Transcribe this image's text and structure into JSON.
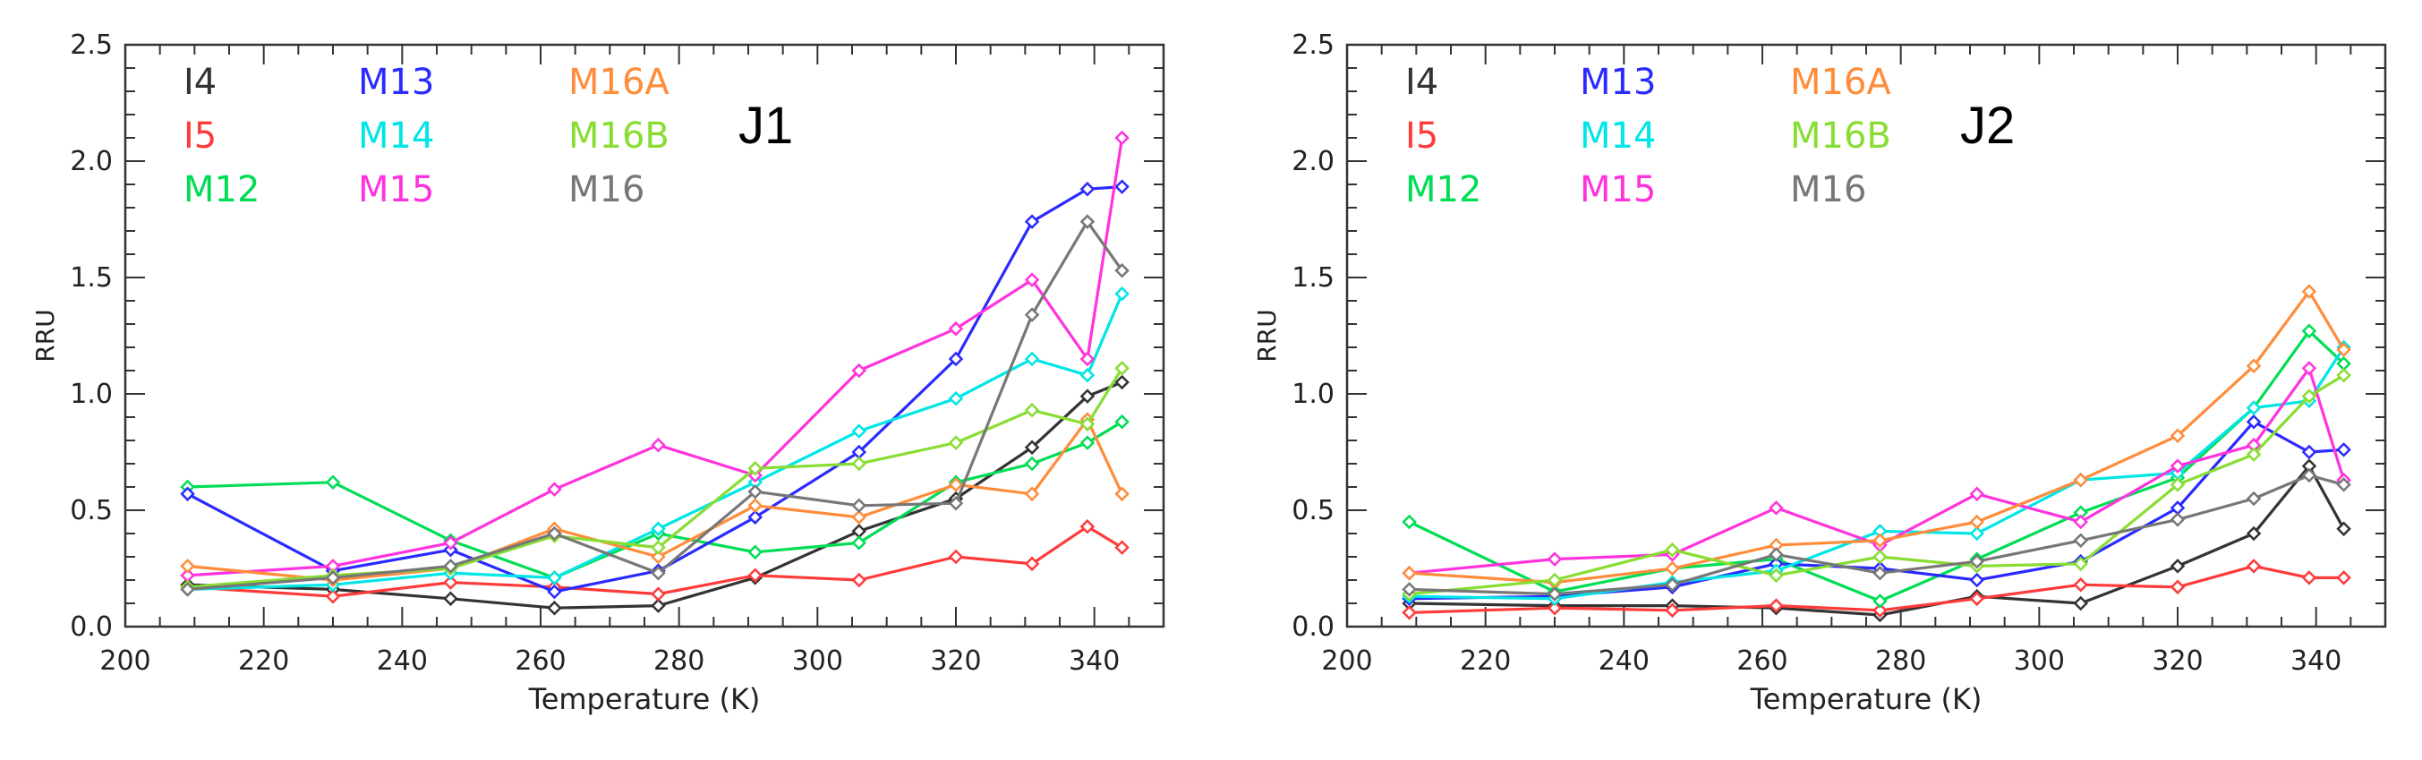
{
  "chart_data": [
    {
      "type": "line",
      "title": "J1",
      "xlabel": "Temperature (K)",
      "ylabel": "RRU",
      "xlim": [
        200,
        350
      ],
      "ylim": [
        0.0,
        2.5
      ],
      "xticks": [
        200,
        220,
        240,
        260,
        280,
        300,
        320,
        340
      ],
      "yticks": [
        0.0,
        0.5,
        1.0,
        1.5,
        2.0,
        2.5
      ],
      "x": [
        209,
        230,
        247,
        262,
        277,
        291,
        306,
        320,
        331,
        339,
        344
      ],
      "series": [
        {
          "name": "I4",
          "color": "#333333",
          "values": [
            0.18,
            0.16,
            0.12,
            0.08,
            0.09,
            0.21,
            0.41,
            0.55,
            0.77,
            0.99,
            1.05
          ]
        },
        {
          "name": "I5",
          "color": "#ff3a3a",
          "values": [
            0.17,
            0.13,
            0.19,
            0.17,
            0.14,
            0.22,
            0.2,
            0.3,
            0.27,
            0.43,
            0.34
          ]
        },
        {
          "name": "M12",
          "color": "#00dd55",
          "values": [
            0.6,
            0.62,
            0.37,
            0.21,
            0.4,
            0.32,
            0.36,
            0.62,
            0.7,
            0.79,
            0.88
          ]
        },
        {
          "name": "M13",
          "color": "#2a2aff",
          "values": [
            0.57,
            0.24,
            0.33,
            0.15,
            0.24,
            0.47,
            0.75,
            1.15,
            1.74,
            1.88,
            1.89
          ]
        },
        {
          "name": "M14",
          "color": "#00e5e5",
          "values": [
            0.16,
            0.18,
            0.23,
            0.21,
            0.42,
            0.62,
            0.84,
            0.98,
            1.15,
            1.08,
            1.43
          ]
        },
        {
          "name": "M15",
          "color": "#ff33dd",
          "values": [
            0.22,
            0.26,
            0.36,
            0.59,
            0.78,
            0.65,
            1.1,
            1.28,
            1.49,
            1.15,
            2.1
          ]
        },
        {
          "name": "M16A",
          "color": "#ff8c3a",
          "values": [
            0.26,
            0.2,
            0.25,
            0.42,
            0.3,
            0.52,
            0.47,
            0.61,
            0.57,
            0.89,
            0.57
          ]
        },
        {
          "name": "M16B",
          "color": "#88dd33",
          "values": [
            0.17,
            0.22,
            0.25,
            0.39,
            0.34,
            0.68,
            0.7,
            0.79,
            0.93,
            0.87,
            1.11
          ]
        },
        {
          "name": "M16",
          "color": "#777777",
          "values": [
            0.16,
            0.21,
            0.26,
            0.4,
            0.23,
            0.58,
            0.52,
            0.53,
            1.34,
            1.74,
            1.53
          ]
        }
      ]
    },
    {
      "type": "line",
      "title": "J2",
      "xlabel": "Temperature (K)",
      "ylabel": "RRU",
      "xlim": [
        200,
        350
      ],
      "ylim": [
        0.0,
        2.5
      ],
      "xticks": [
        200,
        220,
        240,
        260,
        280,
        300,
        320,
        340
      ],
      "yticks": [
        0.0,
        0.5,
        1.0,
        1.5,
        2.0,
        2.5
      ],
      "x": [
        209,
        230,
        247,
        262,
        277,
        291,
        306,
        320,
        331,
        339,
        344
      ],
      "series": [
        {
          "name": "I4",
          "color": "#333333",
          "values": [
            0.1,
            0.09,
            0.09,
            0.08,
            0.05,
            0.13,
            0.1,
            0.26,
            0.4,
            0.69,
            0.42
          ]
        },
        {
          "name": "I5",
          "color": "#ff3a3a",
          "values": [
            0.06,
            0.08,
            0.07,
            0.09,
            0.07,
            0.12,
            0.18,
            0.17,
            0.26,
            0.21,
            0.21
          ]
        },
        {
          "name": "M12",
          "color": "#00dd55",
          "values": [
            0.45,
            0.15,
            0.25,
            0.29,
            0.11,
            0.29,
            0.49,
            0.64,
            0.94,
            1.27,
            1.13
          ]
        },
        {
          "name": "M13",
          "color": "#2a2aff",
          "values": [
            0.12,
            0.13,
            0.17,
            0.27,
            0.25,
            0.2,
            0.28,
            0.51,
            0.88,
            0.75,
            0.76
          ]
        },
        {
          "name": "M14",
          "color": "#00e5e5",
          "values": [
            0.13,
            0.12,
            0.19,
            0.24,
            0.41,
            0.4,
            0.63,
            0.66,
            0.94,
            0.97,
            1.2
          ]
        },
        {
          "name": "M15",
          "color": "#ff33dd",
          "values": [
            0.23,
            0.29,
            0.31,
            0.51,
            0.35,
            0.57,
            0.45,
            0.69,
            0.78,
            1.11,
            0.63
          ]
        },
        {
          "name": "M16A",
          "color": "#ff8c3a",
          "values": [
            0.23,
            0.19,
            0.25,
            0.35,
            0.37,
            0.45,
            0.63,
            0.82,
            1.12,
            1.44,
            1.19
          ]
        },
        {
          "name": "M16B",
          "color": "#88dd33",
          "values": [
            0.14,
            0.2,
            0.33,
            0.22,
            0.3,
            0.26,
            0.27,
            0.61,
            0.74,
            0.99,
            1.08
          ]
        },
        {
          "name": "M16",
          "color": "#777777",
          "values": [
            0.16,
            0.14,
            0.18,
            0.31,
            0.23,
            0.28,
            0.37,
            0.46,
            0.55,
            0.65,
            0.61
          ]
        }
      ]
    }
  ]
}
